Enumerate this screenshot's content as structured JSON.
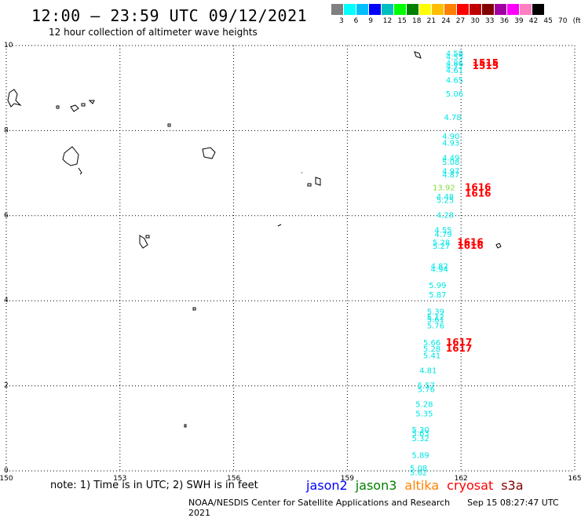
{
  "header": {
    "title": "12:00 – 23:59 UTC 09/12/2021",
    "subtitle": "12 hour collection of altimeter wave heights"
  },
  "legend": {
    "colors": [
      "#808080",
      "#00ffff",
      "#00bfff",
      "#0000ff",
      "#00bfbf",
      "#00ff00",
      "#008000",
      "#ffff00",
      "#ffbf00",
      "#ff8000",
      "#ff0000",
      "#bf0000",
      "#800000",
      "#a000a0",
      "#ff00ff",
      "#ff80c0",
      "#000000"
    ],
    "labels": [
      "3",
      "6",
      "9",
      "12",
      "15",
      "18",
      "21",
      "24",
      "27",
      "30",
      "33",
      "36",
      "39",
      "42",
      "45",
      "70",
      "(ft)"
    ]
  },
  "map": {
    "lon_ticks": [
      "150",
      "153",
      "156",
      "159",
      "162",
      "165"
    ],
    "lat_ticks": [
      "10",
      "8",
      "6",
      "4",
      "2",
      "0"
    ],
    "lon_range": [
      150,
      165
    ],
    "lat_range": [
      0,
      10
    ],
    "grid_lines": "dotted"
  },
  "observations": [
    {
      "lon": 161.6,
      "lat": 9.75,
      "text": "4.58",
      "color": "#00e5e5"
    },
    {
      "lon": 161.6,
      "lat": 9.67,
      "text": "4.55",
      "color": "#00e5e5"
    },
    {
      "lon": 161.6,
      "lat": 9.52,
      "text": "4.86",
      "color": "#00e5e5"
    },
    {
      "lon": 161.6,
      "lat": 9.45,
      "text": "4.72",
      "color": "#00e5e5"
    },
    {
      "lon": 161.6,
      "lat": 9.35,
      "text": "4.61",
      "color": "#00e5e5"
    },
    {
      "lon": 161.6,
      "lat": 9.12,
      "text": "4.65",
      "color": "#00e5e5"
    },
    {
      "lon": 161.6,
      "lat": 8.8,
      "text": "5.06",
      "color": "#00e5e5"
    },
    {
      "lon": 161.55,
      "lat": 8.25,
      "text": "4.78",
      "color": "#00e5e5"
    },
    {
      "lon": 161.5,
      "lat": 7.8,
      "text": "4.90",
      "color": "#00e5e5"
    },
    {
      "lon": 161.5,
      "lat": 7.65,
      "text": "4.93",
      "color": "#00e5e5"
    },
    {
      "lon": 161.5,
      "lat": 7.3,
      "text": "4.49",
      "color": "#00e5e5"
    },
    {
      "lon": 161.5,
      "lat": 7.2,
      "text": "5.08",
      "color": "#00e5e5"
    },
    {
      "lon": 161.5,
      "lat": 6.98,
      "text": "4.97",
      "color": "#00e5e5"
    },
    {
      "lon": 161.5,
      "lat": 6.9,
      "text": "4.87",
      "color": "#00e5e5"
    },
    {
      "lon": 161.25,
      "lat": 6.6,
      "text": "13.92",
      "color": "#80e040"
    },
    {
      "lon": 161.35,
      "lat": 6.38,
      "text": "4.48",
      "color": "#00e5e5"
    },
    {
      "lon": 161.35,
      "lat": 6.3,
      "text": "5.25",
      "color": "#00e5e5"
    },
    {
      "lon": 161.35,
      "lat": 5.95,
      "text": "4.28",
      "color": "#00e5e5"
    },
    {
      "lon": 161.3,
      "lat": 5.6,
      "text": "4.55",
      "color": "#00e5e5"
    },
    {
      "lon": 161.3,
      "lat": 5.5,
      "text": "4.79",
      "color": "#00e5e5"
    },
    {
      "lon": 161.25,
      "lat": 5.3,
      "text": "5.28",
      "color": "#00e5e5"
    },
    {
      "lon": 161.25,
      "lat": 5.22,
      "text": "5.27",
      "color": "#00e5e5"
    },
    {
      "lon": 161.2,
      "lat": 4.75,
      "text": "4.82",
      "color": "#00e5e5"
    },
    {
      "lon": 161.2,
      "lat": 4.68,
      "text": "4.94",
      "color": "#00e5e5"
    },
    {
      "lon": 161.15,
      "lat": 4.3,
      "text": "5.99",
      "color": "#00e5e5"
    },
    {
      "lon": 161.15,
      "lat": 4.08,
      "text": "5.87",
      "color": "#00e5e5"
    },
    {
      "lon": 161.1,
      "lat": 3.68,
      "text": "5.39",
      "color": "#00e5e5"
    },
    {
      "lon": 161.1,
      "lat": 3.55,
      "text": "5.12",
      "color": "#00e5e5"
    },
    {
      "lon": 161.1,
      "lat": 3.5,
      "text": "5.61",
      "color": "#00e5e5"
    },
    {
      "lon": 161.1,
      "lat": 3.35,
      "text": "5.76",
      "color": "#00e5e5"
    },
    {
      "lon": 161.0,
      "lat": 2.95,
      "text": "5.66",
      "color": "#00e5e5"
    },
    {
      "lon": 161.0,
      "lat": 2.8,
      "text": "5.28",
      "color": "#00e5e5"
    },
    {
      "lon": 161.0,
      "lat": 2.65,
      "text": "5.41",
      "color": "#00e5e5"
    },
    {
      "lon": 160.9,
      "lat": 2.3,
      "text": "4.81",
      "color": "#00e5e5"
    },
    {
      "lon": 160.85,
      "lat": 1.95,
      "text": "5.57",
      "color": "#00e5e5"
    },
    {
      "lon": 160.85,
      "lat": 1.85,
      "text": "5.76",
      "color": "#00e5e5"
    },
    {
      "lon": 160.8,
      "lat": 1.5,
      "text": "5.28",
      "color": "#00e5e5"
    },
    {
      "lon": 160.8,
      "lat": 1.28,
      "text": "5.35",
      "color": "#00e5e5"
    },
    {
      "lon": 160.7,
      "lat": 0.9,
      "text": "5.30",
      "color": "#00e5e5"
    },
    {
      "lon": 160.7,
      "lat": 0.82,
      "text": "5.63",
      "color": "#00e5e5"
    },
    {
      "lon": 160.7,
      "lat": 0.7,
      "text": "5.32",
      "color": "#00e5e5"
    },
    {
      "lon": 160.7,
      "lat": 0.3,
      "text": "5.89",
      "color": "#00e5e5"
    },
    {
      "lon": 160.65,
      "lat": 0.0,
      "text": "5.08",
      "color": "#00e5e5"
    },
    {
      "lon": 160.65,
      "lat": -0.1,
      "text": "5.62",
      "color": "#00e5e5"
    },
    {
      "lon": 162.3,
      "lat": 9.52,
      "text": "1515",
      "color": "#ff0000"
    },
    {
      "lon": 162.3,
      "lat": 9.45,
      "text": "1515",
      "color": "#ff0000"
    },
    {
      "lon": 162.1,
      "lat": 6.6,
      "text": "1616",
      "color": "#ff0000"
    },
    {
      "lon": 162.1,
      "lat": 6.45,
      "text": "1616",
      "color": "#ff0000"
    },
    {
      "lon": 161.9,
      "lat": 5.3,
      "text": "1616",
      "color": "#ff0000"
    },
    {
      "lon": 161.9,
      "lat": 5.22,
      "text": "1616",
      "color": "#ff0000"
    },
    {
      "lon": 161.6,
      "lat": 2.95,
      "text": "1617",
      "color": "#ff0000"
    },
    {
      "lon": 161.6,
      "lat": 2.8,
      "text": "1617",
      "color": "#ff0000"
    }
  ],
  "note": "note: 1) Time is in UTC; 2) SWH is in feet",
  "satellites": [
    {
      "name": "jason2",
      "color": "#0000ff"
    },
    {
      "name": "jason3",
      "color": "#008000"
    },
    {
      "name": "altika",
      "color": "#ff8000"
    },
    {
      "name": "cryosat",
      "color": "#ff0000"
    },
    {
      "name": "s3a",
      "color": "#800000"
    }
  ],
  "footer": {
    "credit": "NOAA/NESDIS Center for Satellite Applications and Research",
    "timestamp": "Sep 15 08:27:47 UTC 2021"
  }
}
